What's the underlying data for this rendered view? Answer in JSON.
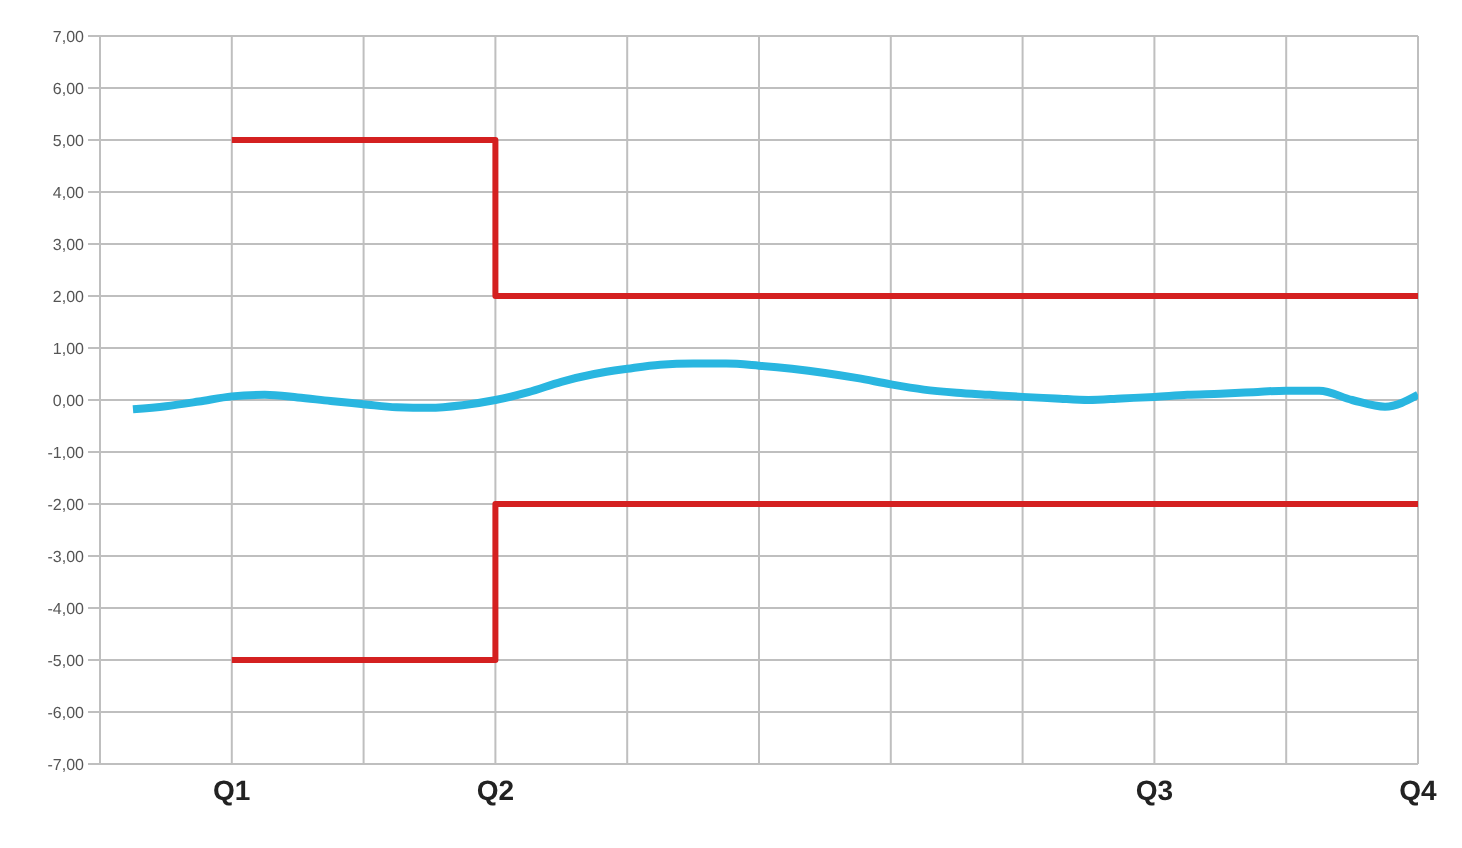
{
  "chart_data": {
    "type": "line",
    "categories": [
      null,
      null,
      null,
      null,
      "Q1",
      null,
      null,
      null,
      null,
      null,
      null,
      null,
      "Q2",
      null,
      null,
      null,
      null,
      null,
      null,
      null,
      null,
      null,
      null,
      null,
      null,
      null,
      null,
      null,
      null,
      null,
      null,
      null,
      "Q3",
      null,
      null,
      null,
      null,
      null,
      null,
      null,
      "Q4"
    ],
    "ylim": [
      -7,
      7
    ],
    "yticks": [
      {
        "value": -7,
        "label": "-7,00"
      },
      {
        "value": -6,
        "label": "-6,00"
      },
      {
        "value": -5,
        "label": "-5,00"
      },
      {
        "value": -4,
        "label": "-4,00"
      },
      {
        "value": -3,
        "label": "-3,00"
      },
      {
        "value": -2,
        "label": "-2,00"
      },
      {
        "value": -1,
        "label": "-1,00"
      },
      {
        "value": 0,
        "label": "0,00"
      },
      {
        "value": 1,
        "label": "1,00"
      },
      {
        "value": 2,
        "label": "2,00"
      },
      {
        "value": 3,
        "label": "3,00"
      },
      {
        "value": 4,
        "label": "4,00"
      },
      {
        "value": 5,
        "label": "5,00"
      },
      {
        "value": 6,
        "label": "6,00"
      },
      {
        "value": 7,
        "label": "7,00"
      }
    ],
    "grid": true,
    "series": [
      {
        "type": "step",
        "color": "#d42020",
        "values": [
          null,
          null,
          null,
          null,
          5,
          5,
          5,
          5,
          5,
          5,
          5,
          5,
          2,
          2,
          2,
          2,
          2,
          2,
          2,
          2,
          2,
          2,
          2,
          2,
          2,
          2,
          2,
          2,
          2,
          2,
          2,
          2,
          2,
          2,
          2,
          2,
          2,
          2,
          2,
          2,
          2
        ]
      },
      {
        "type": "step",
        "color": "#d42020",
        "values": [
          null,
          null,
          null,
          null,
          -5,
          -5,
          -5,
          -5,
          -5,
          -5,
          -5,
          -5,
          -2,
          -2,
          -2,
          -2,
          -2,
          -2,
          -2,
          -2,
          -2,
          -2,
          -2,
          -2,
          -2,
          -2,
          -2,
          -2,
          -2,
          -2,
          -2,
          -2,
          -2,
          -2,
          -2,
          -2,
          -2,
          -2,
          -2,
          -2,
          -2
        ]
      },
      {
        "color": "#29b6e0",
        "values": [
          null,
          -0.18,
          -0.12,
          -0.03,
          0.07,
          0.1,
          0.05,
          -0.02,
          -0.08,
          -0.14,
          -0.15,
          -0.1,
          0,
          0.15,
          0.35,
          0.5,
          0.6,
          0.68,
          0.7,
          0.7,
          0.66,
          0.6,
          0.52,
          0.42,
          0.3,
          0.2,
          0.14,
          0.1,
          0.06,
          0.03,
          0,
          0.03,
          0.06,
          0.1,
          0.12,
          0.15,
          0.18,
          0.18,
          0,
          -0.13,
          0.1
        ]
      }
    ]
  }
}
